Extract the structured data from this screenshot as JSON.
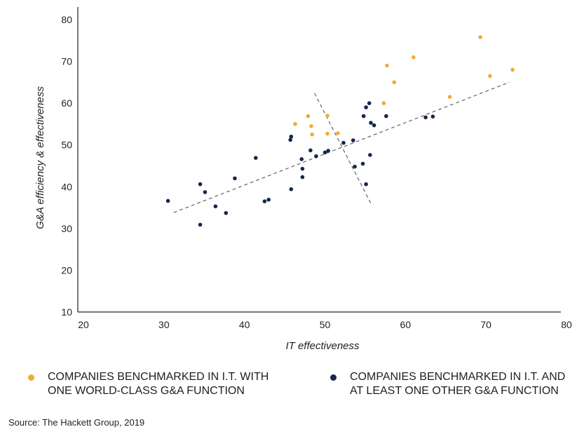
{
  "chart_data": {
    "type": "scatter",
    "xlabel": "IT effectiveness",
    "ylabel": "G&A efficiency & effectiveness",
    "xlim": [
      20,
      80
    ],
    "ylim": [
      10,
      80
    ],
    "xticks": [
      20,
      30,
      40,
      50,
      60,
      70,
      80
    ],
    "yticks": [
      10,
      20,
      30,
      40,
      50,
      60,
      70,
      80
    ],
    "grid": false,
    "legend_placement": "bottom",
    "series": [
      {
        "name": "COMPANIES BENCHMARKED IN I.T. WITH ONE WORLD-CLASS G&A FUNCTION",
        "color": "#f2a93b",
        "points": [
          [
            70.0,
            75.8
          ],
          [
            61.7,
            71.0
          ],
          [
            58.4,
            69.0
          ],
          [
            74.0,
            68.0
          ],
          [
            71.2,
            66.5
          ],
          [
            59.3,
            65.0
          ],
          [
            66.2,
            61.5
          ],
          [
            58.0,
            60.0
          ],
          [
            48.6,
            56.9
          ],
          [
            51.0,
            57.0
          ],
          [
            47.0,
            55.0
          ],
          [
            49.0,
            54.5
          ],
          [
            49.1,
            52.5
          ],
          [
            51.0,
            52.7
          ],
          [
            52.3,
            52.8
          ]
        ]
      },
      {
        "name": "COMPANIES BENCHMARKED IN I.T. AND AT LEAST ONE OTHER G&A FUNCTION",
        "color": "#14284b",
        "points": [
          [
            56.2,
            60.0
          ],
          [
            55.8,
            59.0
          ],
          [
            55.5,
            56.9
          ],
          [
            58.3,
            56.9
          ],
          [
            64.1,
            56.8
          ],
          [
            63.2,
            56.6
          ],
          [
            56.4,
            55.3
          ],
          [
            56.8,
            54.7
          ],
          [
            46.5,
            52.0
          ],
          [
            46.4,
            51.2
          ],
          [
            54.2,
            51.1
          ],
          [
            53.0,
            50.5
          ],
          [
            48.9,
            48.7
          ],
          [
            51.1,
            48.6
          ],
          [
            50.7,
            48.2
          ],
          [
            49.6,
            47.3
          ],
          [
            56.3,
            47.6
          ],
          [
            42.1,
            46.9
          ],
          [
            47.8,
            46.6
          ],
          [
            55.4,
            45.5
          ],
          [
            54.4,
            44.8
          ],
          [
            47.9,
            44.3
          ],
          [
            47.9,
            42.3
          ],
          [
            39.5,
            42.0
          ],
          [
            35.2,
            40.6
          ],
          [
            55.8,
            40.6
          ],
          [
            46.5,
            39.4
          ],
          [
            35.8,
            38.7
          ],
          [
            43.7,
            36.9
          ],
          [
            43.2,
            36.5
          ],
          [
            31.2,
            36.6
          ],
          [
            37.1,
            35.3
          ],
          [
            38.4,
            33.7
          ],
          [
            35.2,
            30.9
          ]
        ]
      }
    ],
    "trend_lines": [
      {
        "style": "dashed",
        "from": [
          31.9,
          33.8
        ],
        "to": [
          73.6,
          65.0
        ]
      },
      {
        "style": "dashed",
        "from": [
          49.4,
          62.4
        ],
        "to": [
          56.5,
          35.6
        ]
      }
    ]
  },
  "legend": [
    {
      "text": "COMPANIES BENCHMARKED IN I.T. WITH\nONE WORLD-CLASS G&A FUNCTION",
      "color": "#f2a93b"
    },
    {
      "text": "COMPANIES BENCHMARKED IN I.T. AND\nAT LEAST ONE OTHER G&A FUNCTION",
      "color": "#14284b"
    }
  ],
  "source": "Source: The Hackett Group, 2019"
}
